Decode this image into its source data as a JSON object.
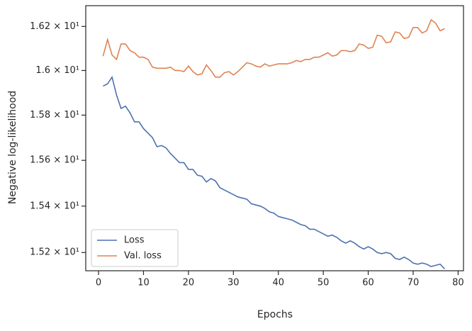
{
  "chart_data": {
    "type": "line",
    "xlabel": "Epochs",
    "ylabel": "Negative log-likelihood",
    "x": [
      1,
      2,
      3,
      4,
      5,
      6,
      7,
      8,
      9,
      10,
      11,
      12,
      13,
      14,
      15,
      16,
      17,
      18,
      19,
      20,
      21,
      22,
      23,
      24,
      25,
      26,
      27,
      28,
      29,
      30,
      31,
      32,
      33,
      34,
      35,
      36,
      37,
      38,
      39,
      40,
      41,
      42,
      43,
      44,
      45,
      46,
      47,
      48,
      49,
      50,
      51,
      52,
      53,
      54,
      55,
      56,
      57,
      58,
      59,
      60,
      61,
      62,
      63,
      64,
      65,
      66,
      67,
      68,
      69,
      70,
      71,
      72,
      73,
      74,
      75,
      76,
      77
    ],
    "series": [
      {
        "name": "Loss",
        "color": "#4c72b0",
        "values": [
          15.93,
          15.94,
          15.97,
          15.89,
          15.83,
          15.84,
          15.81,
          15.77,
          15.77,
          15.74,
          15.72,
          15.7,
          15.66,
          15.665,
          15.655,
          15.63,
          15.61,
          15.59,
          15.59,
          15.56,
          15.56,
          15.535,
          15.53,
          15.505,
          15.52,
          15.51,
          15.48,
          15.47,
          15.46,
          15.45,
          15.44,
          15.435,
          15.43,
          15.41,
          15.405,
          15.4,
          15.39,
          15.375,
          15.37,
          15.355,
          15.35,
          15.345,
          15.34,
          15.33,
          15.32,
          15.315,
          15.3,
          15.3,
          15.29,
          15.28,
          15.27,
          15.275,
          15.265,
          15.25,
          15.24,
          15.25,
          15.24,
          15.225,
          15.215,
          15.225,
          15.215,
          15.2,
          15.195,
          15.2,
          15.195,
          15.175,
          15.17,
          15.18,
          15.17,
          15.155,
          15.15,
          15.155,
          15.15,
          15.14,
          15.145,
          15.15,
          15.13
        ]
      },
      {
        "name": "Val. loss",
        "color": "#dd8452",
        "values": [
          16.065,
          16.14,
          16.07,
          16.05,
          16.12,
          16.12,
          16.09,
          16.08,
          16.06,
          16.06,
          16.05,
          16.015,
          16.01,
          16.01,
          16.01,
          16.015,
          16.0,
          16.0,
          15.995,
          16.02,
          15.995,
          15.98,
          15.985,
          16.025,
          16.0,
          15.97,
          15.97,
          15.99,
          15.995,
          15.98,
          15.995,
          16.015,
          16.035,
          16.03,
          16.02,
          16.015,
          16.03,
          16.02,
          16.025,
          16.03,
          16.03,
          16.03,
          16.035,
          16.045,
          16.04,
          16.05,
          16.05,
          16.06,
          16.06,
          16.07,
          16.08,
          16.065,
          16.07,
          16.09,
          16.09,
          16.085,
          16.09,
          16.12,
          16.115,
          16.1,
          16.105,
          16.16,
          16.155,
          16.125,
          16.13,
          16.175,
          16.17,
          16.145,
          16.15,
          16.195,
          16.195,
          16.17,
          16.18,
          16.23,
          16.215,
          16.18,
          16.19
        ]
      }
    ],
    "xlim": [
      -2.85,
      81.2
    ],
    "ylim": [
      15.122,
      16.295
    ],
    "ylog": true,
    "xticks": [
      0,
      10,
      20,
      30,
      40,
      50,
      60,
      70,
      80
    ],
    "yticks": [
      {
        "value": 15.2,
        "label": "1.52 × 10¹"
      },
      {
        "value": 15.4,
        "label": "1.54 × 10¹"
      },
      {
        "value": 15.6,
        "label": "1.56 × 10¹"
      },
      {
        "value": 15.8,
        "label": "1.58 × 10¹"
      },
      {
        "value": 16.0,
        "label": "1.6 × 10¹"
      },
      {
        "value": 16.2,
        "label": "1.62 × 10¹"
      }
    ],
    "legend": "lower left",
    "grid": false
  }
}
